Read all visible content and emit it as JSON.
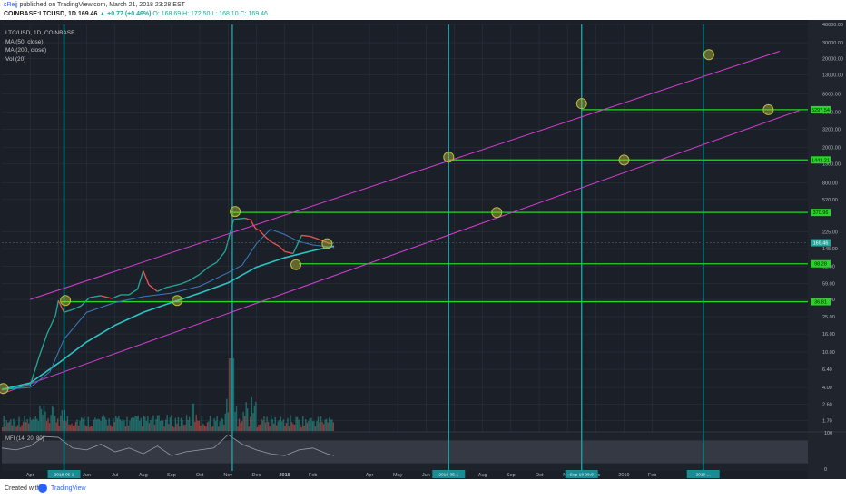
{
  "header": {
    "user": "sRejj",
    "published": "published on TradingView.com, March 21, 2018 23:28 EST",
    "symbol": "COINBASE:LTCUSD, 1D",
    "last": "169.46",
    "change": "▲ +0.77 (+0.46%)",
    "ohlc": "O: 168.69  H: 172.50  L: 168.10  C: 169.46"
  },
  "legend": {
    "title": "LTC/USD, 1D, COINBASE",
    "items": [
      "MA (50, close)",
      "MA (200, close)",
      "Vol (20)"
    ]
  },
  "footer": {
    "created_with": "Created with",
    "brand": "TradingView"
  },
  "colors": {
    "background": "#1b2028",
    "grid": "#2a313c",
    "ma50": "#3a7bbf",
    "ma200": "#2bc4c4",
    "channel": "#d63ed6",
    "levels": "#28d428",
    "vlines": "#1aa0a8",
    "circles": "#b8bd3a",
    "candle_up": "#26a69a",
    "candle_down": "#ef5350",
    "axis_text": "#b2b5be"
  },
  "chart_data": {
    "type": "line",
    "title": "LTC/USD, 1D, COINBASE",
    "scale": "log",
    "ylim": [
      1.3,
      48000
    ],
    "x_ticks": [
      "Apr",
      "May",
      "Jun",
      "Jul",
      "Aug",
      "Sep",
      "Oct",
      "Nov",
      "Dec",
      "2018",
      "Feb",
      "Apr",
      "May",
      "Jun",
      "Jul",
      "Aug",
      "Sep",
      "Oct",
      "Nov",
      "Dec",
      "2019",
      "Feb"
    ],
    "x_tick_months": [
      1,
      2,
      3,
      4,
      5,
      6,
      7,
      8,
      9,
      10,
      11,
      13,
      14,
      15,
      16,
      17,
      18,
      19,
      20,
      21,
      22,
      23
    ],
    "y_ticks": [
      1.7,
      2.6,
      4.0,
      6.4,
      10.0,
      16.0,
      25.0,
      39.0,
      59.0,
      92.0,
      145.0,
      225.0,
      520.0,
      800.0,
      1300.0,
      2000.0,
      3200.0,
      5000.0,
      8000.0,
      13000.0,
      20000.0,
      30000.0,
      48000.0
    ],
    "price_series": {
      "name": "LTCUSD",
      "x": [
        0.0,
        0.4,
        0.7,
        1.0,
        1.3,
        1.6,
        1.9,
        2.0,
        2.2,
        2.5,
        2.8,
        3.1,
        3.5,
        3.9,
        4.2,
        4.5,
        4.8,
        5.0,
        5.2,
        5.5,
        5.8,
        6.0,
        6.3,
        6.6,
        7.0,
        7.3,
        7.6,
        7.9,
        8.2,
        8.6,
        8.8,
        8.9,
        9.0,
        9.1,
        9.3,
        9.5,
        9.8,
        10.0,
        10.3,
        10.6,
        10.9,
        11.1,
        11.4,
        11.6,
        11.75
      ],
      "y": [
        3.8,
        3.9,
        4.1,
        4.2,
        8.5,
        16,
        26,
        38,
        28,
        30,
        33,
        41,
        43,
        40,
        44,
        44,
        51,
        82,
        57,
        48,
        53,
        55,
        58,
        63,
        75,
        90,
        102,
        136,
        310,
        320,
        305,
        265,
        240,
        235,
        200,
        175,
        155,
        135,
        128,
        205,
        200,
        190,
        175,
        165,
        169.46
      ]
    },
    "ma50_series": {
      "name": "MA (50, close)",
      "x": [
        0.0,
        1.0,
        1.7,
        2.2,
        3.0,
        4.0,
        5.0,
        6.0,
        7.0,
        8.0,
        8.5,
        9.0,
        9.5,
        10.0,
        10.5,
        11.0,
        11.75
      ],
      "y": [
        3.8,
        4.0,
        6,
        14,
        28,
        36,
        42,
        46,
        55,
        78,
        95,
        165,
        240,
        210,
        175,
        160,
        150
      ]
    },
    "ma200_series": {
      "name": "MA (200, close)",
      "x": [
        0.0,
        1.0,
        2.0,
        3.0,
        4.0,
        5.0,
        6.0,
        7.0,
        8.0,
        9.0,
        10.0,
        11.0,
        11.75
      ],
      "y": [
        3.8,
        4.5,
        7.5,
        13,
        20,
        28,
        36,
        46,
        60,
        90,
        115,
        138,
        155
      ]
    },
    "channel_lines": [
      {
        "x": [
          1.0,
          27.5
        ],
        "y": [
          39,
          24000
        ]
      },
      {
        "x": [
          0.0,
          28.2
        ],
        "y": [
          3.4,
          5200
        ]
      }
    ],
    "horizontal_levels": [
      {
        "value": 36.81,
        "label": "36.81",
        "x_start": 2.1
      },
      {
        "value": 98.28,
        "label": "98.28",
        "x_start": 10.5
      },
      {
        "value": 370.96,
        "label": "370.96",
        "x_start": 8.1
      },
      {
        "value": 1443.21,
        "label": "1443.21",
        "x_start": 15.8
      },
      {
        "value": 5297.54,
        "label": "5297.54",
        "x_start": 20.5
      }
    ],
    "current_price": {
      "value": 169.46,
      "label": "169.46"
    },
    "vertical_lines_month": [
      2.2,
      8.15,
      15.8,
      20.5,
      24.8
    ],
    "circles": [
      {
        "x": 0.05,
        "y": 3.9
      },
      {
        "x": 2.25,
        "y": 38
      },
      {
        "x": 6.2,
        "y": 38
      },
      {
        "x": 8.25,
        "y": 380
      },
      {
        "x": 10.4,
        "y": 96
      },
      {
        "x": 11.5,
        "y": 165
      },
      {
        "x": 15.8,
        "y": 1550
      },
      {
        "x": 17.5,
        "y": 370
      },
      {
        "x": 20.5,
        "y": 6200
      },
      {
        "x": 22.0,
        "y": 1440
      },
      {
        "x": 25.0,
        "y": 22000
      },
      {
        "x": 27.1,
        "y": 5300
      }
    ],
    "vertical_line_labels": [
      "2018-05-1",
      "Sep 18 08:0",
      "2019-..."
    ],
    "mfi": {
      "label": "MFI (14, 20, 80)",
      "axis_ticks": [
        "100",
        "0"
      ],
      "shaded_band": [
        20,
        80
      ],
      "x": [
        0.0,
        0.5,
        1.0,
        1.5,
        2.0,
        2.5,
        3.0,
        3.5,
        4.0,
        4.5,
        5.0,
        5.5,
        6.0,
        6.5,
        7.0,
        7.5,
        8.0,
        8.5,
        9.0,
        9.5,
        10.0,
        10.5,
        11.0,
        11.5,
        11.75
      ],
      "y": [
        60,
        55,
        65,
        90,
        88,
        60,
        55,
        70,
        50,
        60,
        45,
        65,
        40,
        50,
        55,
        60,
        95,
        70,
        55,
        45,
        40,
        55,
        60,
        45,
        40
      ]
    }
  }
}
